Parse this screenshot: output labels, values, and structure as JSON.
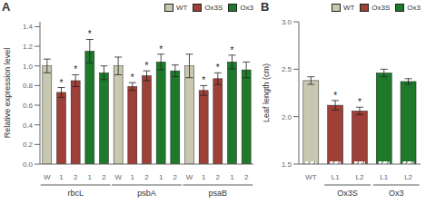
{
  "chart_data": [
    {
      "type": "bar",
      "panel_label": "A",
      "ylabel": "Relative expression level",
      "ylim": [
        0,
        1.45
      ],
      "yticks": [
        {
          "value": 0.0,
          "label": "0.0"
        },
        0.2,
        0.4,
        0.6,
        0.8,
        {
          "value": 1.0,
          "label": "1.0"
        },
        1.2,
        1.4
      ],
      "groups": [
        {
          "label": "rbcL",
          "categories": [
            "W",
            "1",
            "2",
            "1",
            "2"
          ],
          "values": [
            1.0,
            0.73,
            0.85,
            1.15,
            0.93
          ],
          "errors": [
            0.07,
            0.05,
            0.06,
            0.12,
            0.07
          ],
          "colors": [
            "#c8c8b0",
            "#9e4038",
            "#9e4038",
            "#1e7a2a",
            "#1e7a2a"
          ],
          "significant": [
            false,
            true,
            true,
            true,
            false
          ]
        },
        {
          "label": "psbA",
          "categories": [
            "W",
            "1",
            "2",
            "1",
            "2"
          ],
          "values": [
            1.0,
            0.79,
            0.9,
            1.04,
            0.95
          ],
          "errors": [
            0.09,
            0.04,
            0.05,
            0.08,
            0.06
          ],
          "colors": [
            "#c8c8b0",
            "#9e4038",
            "#9e4038",
            "#1e7a2a",
            "#1e7a2a"
          ],
          "significant": [
            false,
            true,
            true,
            true,
            false
          ]
        },
        {
          "label": "psaB",
          "categories": [
            "W",
            "1",
            "2",
            "1",
            "2"
          ],
          "values": [
            1.0,
            0.75,
            0.87,
            1.04,
            0.96
          ],
          "errors": [
            0.12,
            0.05,
            0.06,
            0.07,
            0.08
          ],
          "colors": [
            "#c8c8b0",
            "#9e4038",
            "#9e4038",
            "#1e7a2a",
            "#1e7a2a"
          ],
          "significant": [
            false,
            true,
            true,
            true,
            false
          ]
        }
      ],
      "significance_mark": "*",
      "legend": "upper right",
      "legend_entries": [
        {
          "name": "WT",
          "color": "#c8c8b0"
        },
        {
          "name": "Ox3S",
          "color": "#9e4038"
        },
        {
          "name": "Ox3",
          "color": "#1e7a2a"
        }
      ]
    },
    {
      "type": "bar",
      "panel_label": "B",
      "ylabel": "Leaf length (cm)",
      "ylim": [
        1.5,
        3.0
      ],
      "yticks": [
        1.5,
        {
          "value": 2.0,
          "label": "2.0"
        },
        2.5,
        {
          "value": 3.0,
          "label": "3.0"
        }
      ],
      "groups": [
        {
          "label": null,
          "categories": [
            "WT"
          ],
          "values": [
            2.38
          ],
          "errors": [
            0.04
          ],
          "colors": [
            "#c8c8b0"
          ],
          "significant": [
            false
          ]
        },
        {
          "label": "Ox3S",
          "categories": [
            "L1",
            "L2"
          ],
          "values": [
            2.12,
            2.06
          ],
          "errors": [
            0.05,
            0.04
          ],
          "colors": [
            "#9e4038",
            "#9e4038"
          ],
          "significant": [
            true,
            true
          ]
        },
        {
          "label": "Ox3",
          "categories": [
            "L1",
            "L2"
          ],
          "values": [
            2.46,
            2.37
          ],
          "errors": [
            0.04,
            0.03
          ],
          "colors": [
            "#1e7a2a",
            "#1e7a2a"
          ],
          "significant": [
            false,
            false
          ]
        }
      ],
      "significance_mark": "*",
      "legend": "upper right",
      "legend_entries": [
        {
          "name": "WT",
          "color": "#c8c8b0"
        },
        {
          "name": "Ox3S",
          "color": "#9e4038"
        },
        {
          "name": "Ox3",
          "color": "#1e7a2a"
        }
      ]
    }
  ]
}
